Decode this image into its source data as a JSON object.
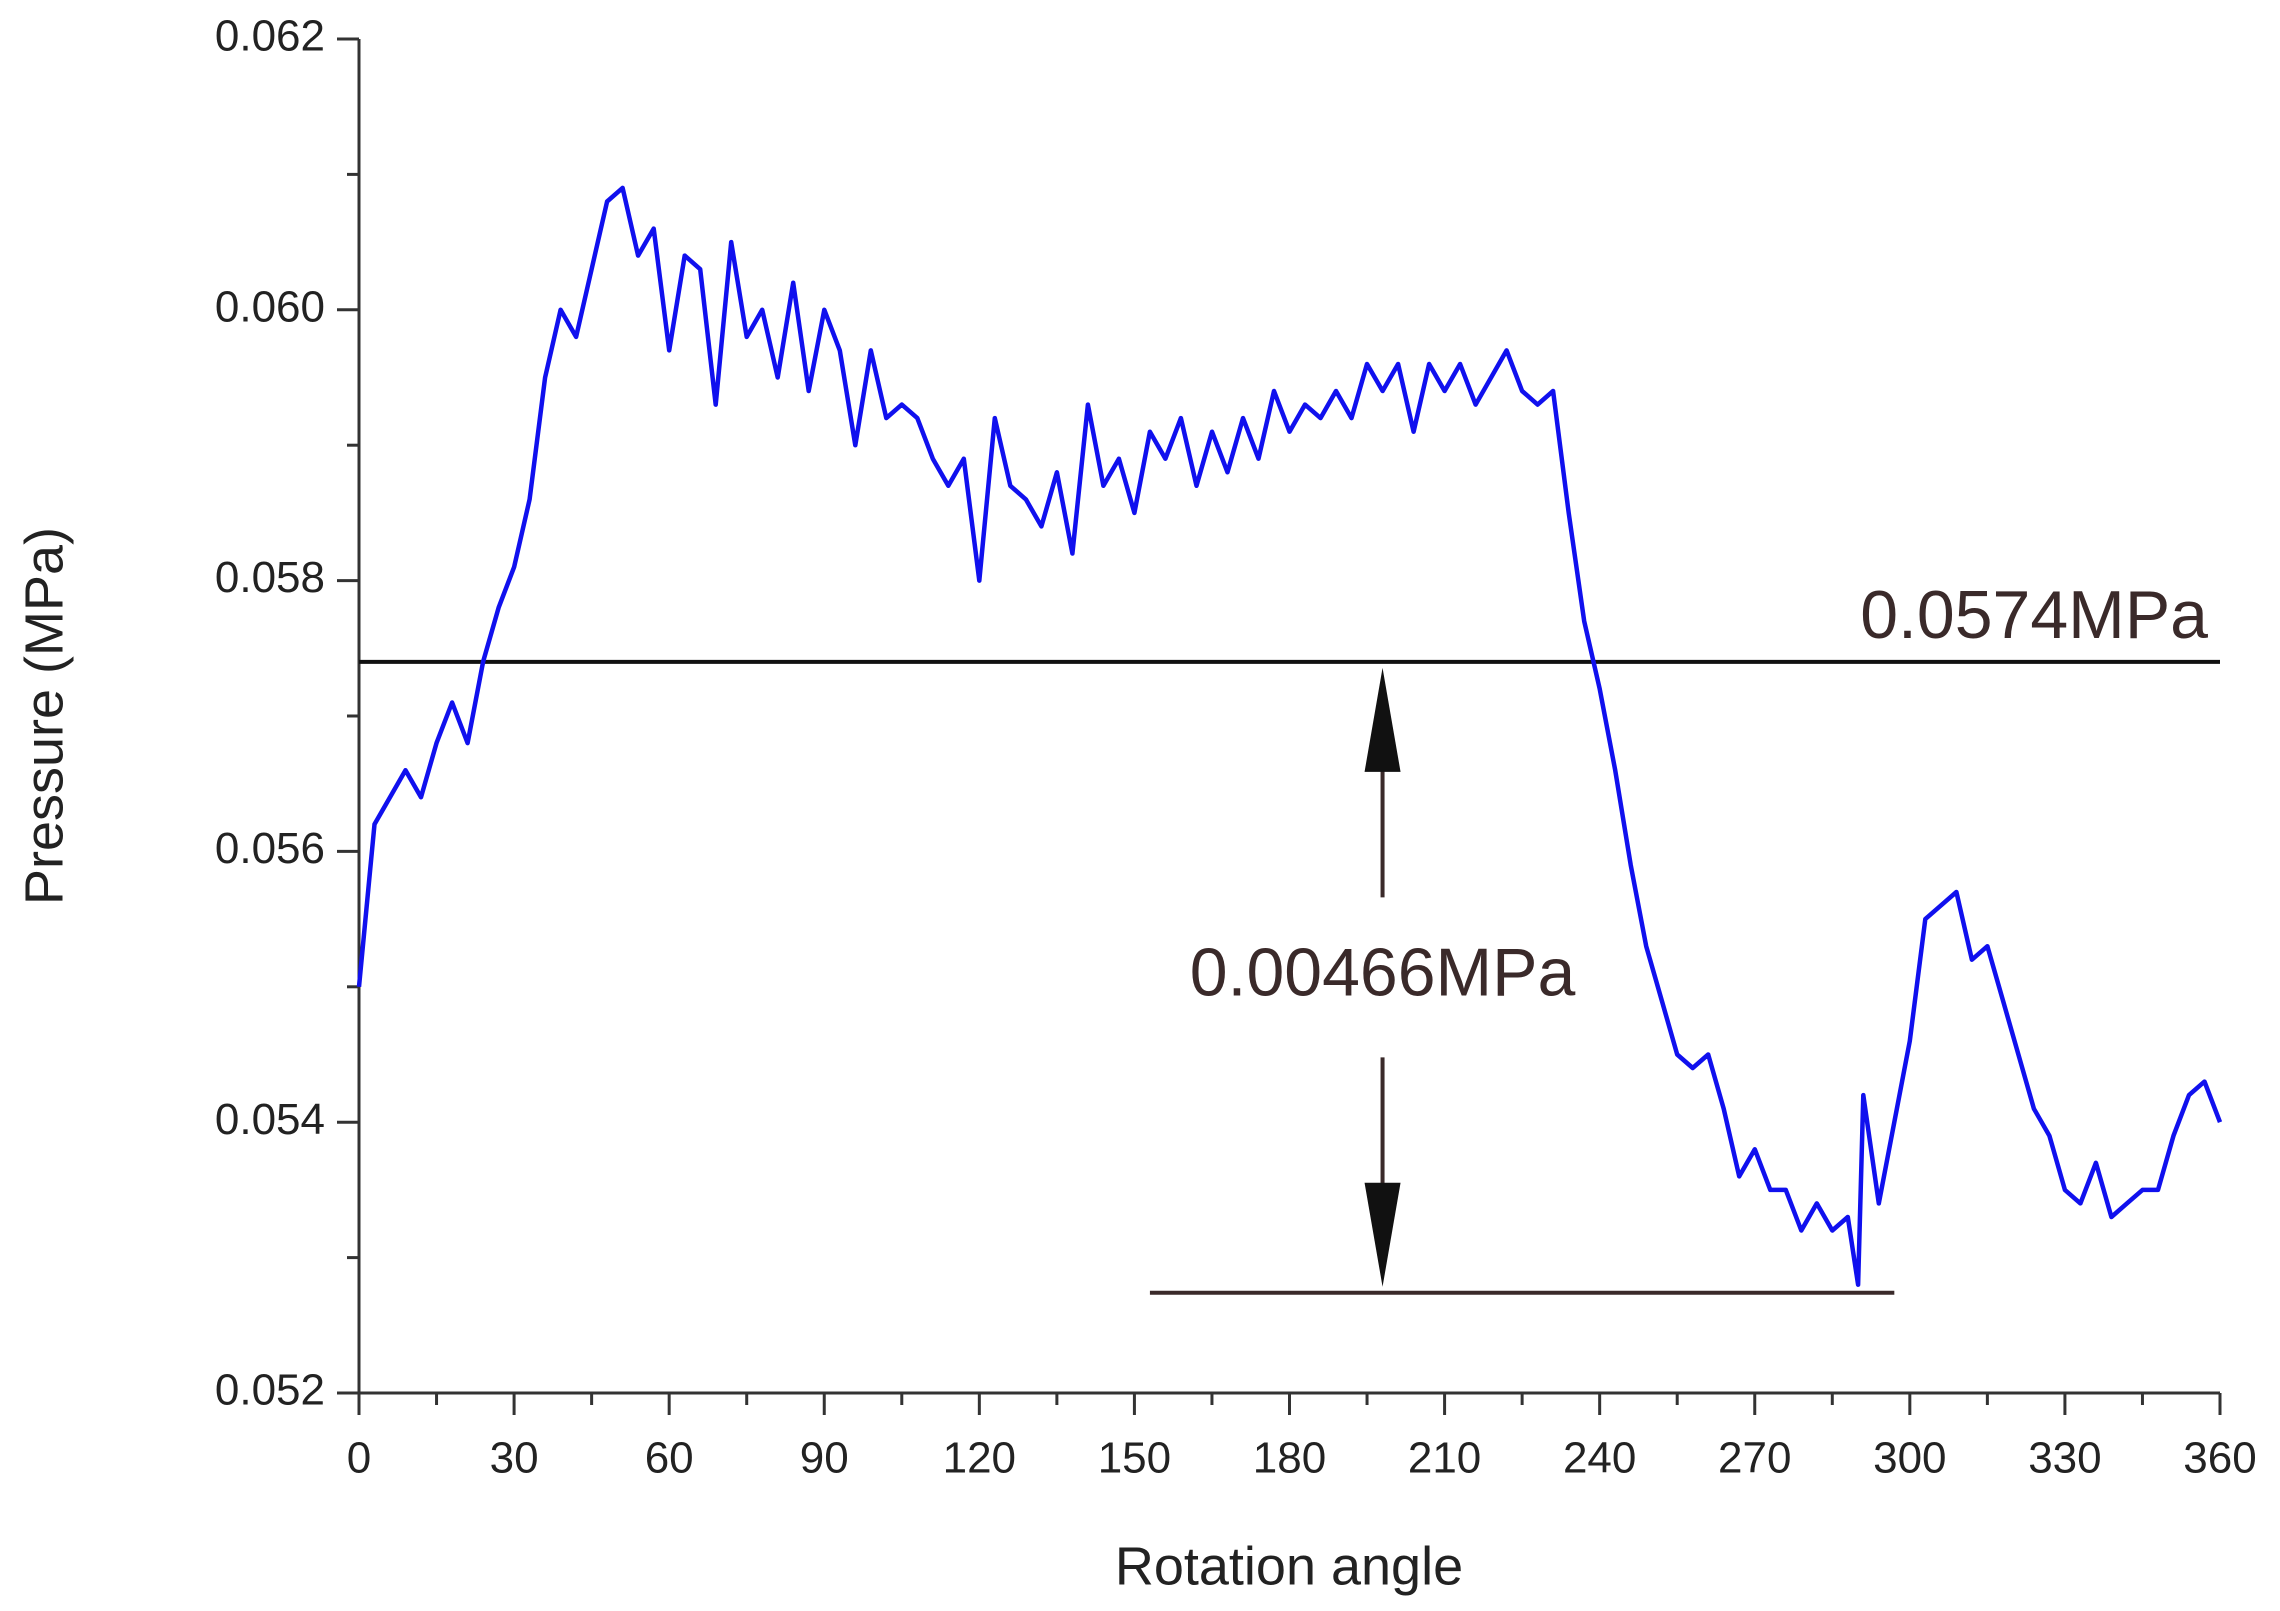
{
  "chart_data": {
    "type": "line",
    "xlabel": "Rotation angle",
    "ylabel": "Pressure (MPa)",
    "color": "#1010ee",
    "x": [
      0,
      3,
      6,
      9,
      12,
      15,
      18,
      21,
      24,
      27,
      30,
      33,
      36,
      39,
      42,
      45,
      48,
      51,
      54,
      57,
      60,
      63,
      66,
      69,
      72,
      75,
      78,
      81,
      84,
      87,
      90,
      93,
      96,
      99,
      102,
      105,
      108,
      111,
      114,
      117,
      120,
      123,
      126,
      129,
      132,
      135,
      138,
      141,
      144,
      147,
      150,
      153,
      156,
      159,
      162,
      165,
      168,
      171,
      174,
      177,
      180,
      183,
      186,
      189,
      192,
      195,
      198,
      201,
      204,
      207,
      210,
      213,
      216,
      219,
      222,
      225,
      228,
      231,
      234,
      237,
      240,
      243,
      246,
      249,
      252,
      255,
      258,
      261,
      264,
      267,
      270,
      273,
      276,
      279,
      282,
      285,
      288,
      290,
      291,
      294,
      297,
      300,
      303,
      306,
      309,
      312,
      315,
      318,
      321,
      324,
      327,
      330,
      333,
      336,
      339,
      342,
      345,
      348,
      351,
      354,
      357,
      360
    ],
    "values": [
      0.055,
      0.0562,
      0.0564,
      0.0566,
      0.0564,
      0.0568,
      0.0571,
      0.0568,
      0.0574,
      0.0578,
      0.0581,
      0.0586,
      0.0595,
      0.06,
      0.0598,
      0.0603,
      0.0608,
      0.0609,
      0.0604,
      0.0606,
      0.0597,
      0.0604,
      0.0603,
      0.0593,
      0.0605,
      0.0598,
      0.06,
      0.0595,
      0.0602,
      0.0594,
      0.06,
      0.0597,
      0.059,
      0.0597,
      0.0592,
      0.0593,
      0.0592,
      0.0589,
      0.0587,
      0.0589,
      0.058,
      0.0592,
      0.0587,
      0.0586,
      0.0584,
      0.0588,
      0.0582,
      0.0593,
      0.0587,
      0.0589,
      0.0585,
      0.0591,
      0.0589,
      0.0592,
      0.0587,
      0.0591,
      0.0588,
      0.0592,
      0.0589,
      0.0594,
      0.0591,
      0.0593,
      0.0592,
      0.0594,
      0.0592,
      0.0596,
      0.0594,
      0.0596,
      0.0591,
      0.0596,
      0.0594,
      0.0596,
      0.0593,
      0.0595,
      0.0597,
      0.0594,
      0.0593,
      0.0594,
      0.0585,
      0.0577,
      0.0572,
      0.0566,
      0.0559,
      0.0553,
      0.0549,
      0.0545,
      0.0544,
      0.0545,
      0.0541,
      0.0536,
      0.0538,
      0.0535,
      0.0535,
      0.0532,
      0.0534,
      0.0532,
      0.0533,
      0.0528,
      0.0542,
      0.0534,
      0.054,
      0.0546,
      0.0555,
      0.0556,
      0.0557,
      0.0552,
      0.0553,
      0.0549,
      0.0545,
      0.0541,
      0.0539,
      0.0535,
      0.0534,
      0.0537,
      0.0533,
      0.0534,
      0.0535,
      0.0535,
      0.0539,
      0.0542,
      0.0543,
      0.054
    ],
    "xlim": [
      0,
      360
    ],
    "xticks": [
      0,
      30,
      60,
      90,
      120,
      150,
      180,
      210,
      240,
      270,
      300,
      330,
      360
    ],
    "xminorticks": [
      15,
      45,
      75,
      105,
      135,
      165,
      195,
      225,
      255,
      285,
      315,
      345
    ],
    "ylim": [
      0.052,
      0.062
    ],
    "yticks": [
      0.052,
      0.054,
      0.056,
      0.058,
      {
        "value": 0.06,
        "label": "0.060"
      },
      0.062
    ],
    "yminorticks": [
      0.053,
      0.055,
      0.057,
      0.059,
      0.061
    ],
    "reference_line": {
      "value": 0.0574,
      "label": "0.0574MPa"
    },
    "min_line": {
      "value": 0.05274,
      "xrange": [
        153,
        297
      ]
    },
    "difference": {
      "x": 198,
      "from": 0.05274,
      "to": 0.0574,
      "label": "0.00466MPa"
    }
  }
}
